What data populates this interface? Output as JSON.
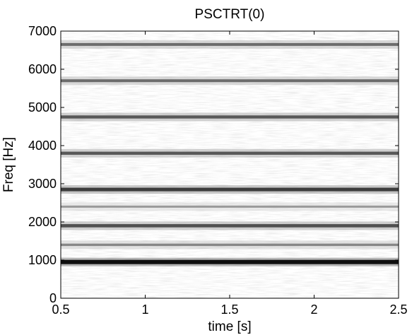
{
  "chart_data": {
    "type": "heatmap",
    "subtype": "spectrogram",
    "title": "PSCTRT(0)",
    "xlabel": "time [s]",
    "ylabel": "Freq [Hz]",
    "xlim": [
      0.5,
      2.5
    ],
    "ylim": [
      0,
      7000
    ],
    "x_ticks": [
      0.5,
      1,
      1.5,
      2,
      2.5
    ],
    "x_tick_labels": [
      "0.5",
      "1",
      "1.5",
      "2",
      "2.5"
    ],
    "y_ticks": [
      0,
      1000,
      2000,
      3000,
      4000,
      5000,
      6000,
      7000
    ],
    "y_tick_labels": [
      "0",
      "1000",
      "2000",
      "3000",
      "4000",
      "5000",
      "6000",
      "7000"
    ],
    "colormap": "gray-inverted",
    "harmonics": [
      {
        "freq": 950,
        "intensity": 1.0
      },
      {
        "freq": 1400,
        "intensity": 0.35
      },
      {
        "freq": 1900,
        "intensity": 0.65
      },
      {
        "freq": 2400,
        "intensity": 0.25
      },
      {
        "freq": 2850,
        "intensity": 0.75
      },
      {
        "freq": 3800,
        "intensity": 0.6
      },
      {
        "freq": 4750,
        "intensity": 0.6
      },
      {
        "freq": 5700,
        "intensity": 0.5
      },
      {
        "freq": 6650,
        "intensity": 0.5
      }
    ]
  }
}
